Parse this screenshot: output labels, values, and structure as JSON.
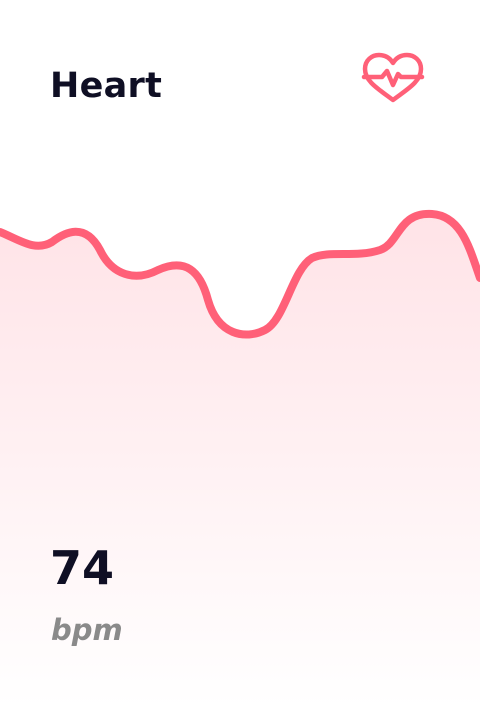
{
  "card": {
    "title": "Heart",
    "icon": "heart-pulse-icon",
    "value": "74",
    "unit": "bpm"
  },
  "colors": {
    "accent": "#ff6078",
    "fill_top": "#ffe4e8",
    "fill_bottom": "#ffffff",
    "text_primary": "#0f0f24",
    "text_secondary": "#8a8a8a"
  }
}
